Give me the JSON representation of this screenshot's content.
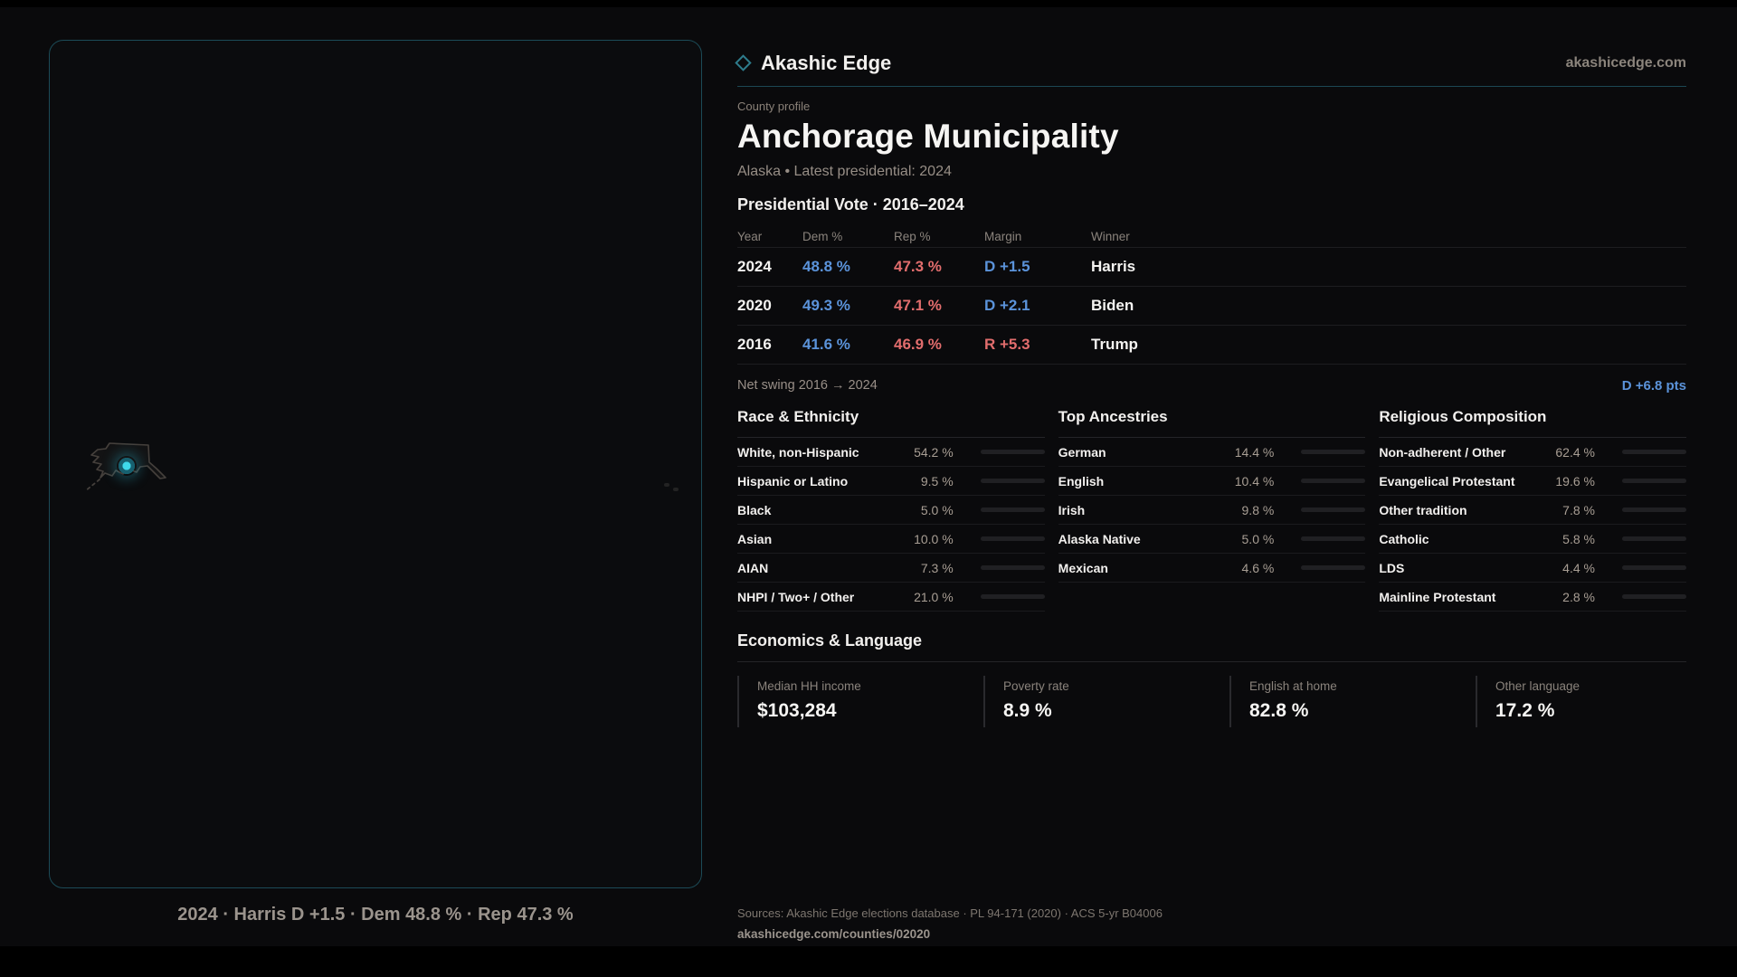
{
  "brand": {
    "name": "Akashic Edge",
    "domain": "akashicedge.com"
  },
  "profile": {
    "eyebrow": "County profile",
    "title": "Anchorage Municipality",
    "subtitle": "Alaska • Latest presidential: 2024"
  },
  "vote_table": {
    "title": "Presidential Vote · 2016–2024",
    "columns": {
      "year": "Year",
      "dem": "Dem %",
      "rep": "Rep %",
      "margin": "Margin",
      "winner": "Winner"
    },
    "rows": [
      {
        "year": "2024",
        "dem": "48.8 %",
        "rep": "47.3 %",
        "margin": "D +1.5",
        "margin_party": "dem",
        "winner": "Harris"
      },
      {
        "year": "2020",
        "dem": "49.3 %",
        "rep": "47.1 %",
        "margin": "D +2.1",
        "margin_party": "dem",
        "winner": "Biden"
      },
      {
        "year": "2016",
        "dem": "41.6 %",
        "rep": "46.9 %",
        "margin": "R +5.3",
        "margin_party": "rep",
        "winner": "Trump"
      }
    ]
  },
  "net_swing": {
    "label": "Net swing 2016 → 2024",
    "value": "D +6.8 pts",
    "party": "dem"
  },
  "sections": [
    {
      "title": "Race & Ethnicity",
      "rows": [
        {
          "label": "White, non-Hispanic",
          "value": "54.2 %",
          "pct": 54.2
        },
        {
          "label": "Hispanic or Latino",
          "value": "9.5 %",
          "pct": 9.5
        },
        {
          "label": "Black",
          "value": "5.0 %",
          "pct": 5.0
        },
        {
          "label": "Asian",
          "value": "10.0 %",
          "pct": 10.0
        },
        {
          "label": "AIAN",
          "value": "7.3 %",
          "pct": 7.3
        },
        {
          "label": "NHPI / Two+ / Other",
          "value": "21.0 %",
          "pct": 21.0
        }
      ]
    },
    {
      "title": "Top Ancestries",
      "rows": [
        {
          "label": "German",
          "value": "14.4 %",
          "pct": 14.4
        },
        {
          "label": "English",
          "value": "10.4 %",
          "pct": 10.4
        },
        {
          "label": "Irish",
          "value": "9.8 %",
          "pct": 9.8
        },
        {
          "label": "Alaska Native",
          "value": "5.0 %",
          "pct": 5.0
        },
        {
          "label": "Mexican",
          "value": "4.6 %",
          "pct": 4.6
        }
      ]
    },
    {
      "title": "Religious Composition",
      "rows": [
        {
          "label": "Non-adherent / Other",
          "value": "62.4 %",
          "pct": 62.4
        },
        {
          "label": "Evangelical Protestant",
          "value": "19.6 %",
          "pct": 19.6
        },
        {
          "label": "Other tradition",
          "value": "7.8 %",
          "pct": 7.8
        },
        {
          "label": "Catholic",
          "value": "5.8 %",
          "pct": 5.8
        },
        {
          "label": "LDS",
          "value": "4.4 %",
          "pct": 4.4
        },
        {
          "label": "Mainline Protestant",
          "value": "2.8 %",
          "pct": 2.8
        }
      ]
    }
  ],
  "economics": {
    "title": "Economics & Language",
    "stats": [
      {
        "label": "Median HH income",
        "value": "$103,284"
      },
      {
        "label": "Poverty rate",
        "value": "8.9 %"
      },
      {
        "label": "English at home",
        "value": "82.8 %"
      },
      {
        "label": "Other language",
        "value": "17.2 %"
      }
    ]
  },
  "map": {
    "caption": "2024 · Harris D +1.5 · Dem 48.8 % · Rep 47.3 %"
  },
  "footer": {
    "sources": "Sources: Akashic Edge elections database · PL 94-171 (2020) · ACS 5-yr B04006",
    "link": "akashicedge.com/counties/02020"
  },
  "colors": {
    "dem": "#5b93da",
    "rep": "#e26d6d",
    "accent": "#2e7c8c",
    "bar_fill": "#cbc8c4",
    "marker": "#3fd9ea"
  }
}
